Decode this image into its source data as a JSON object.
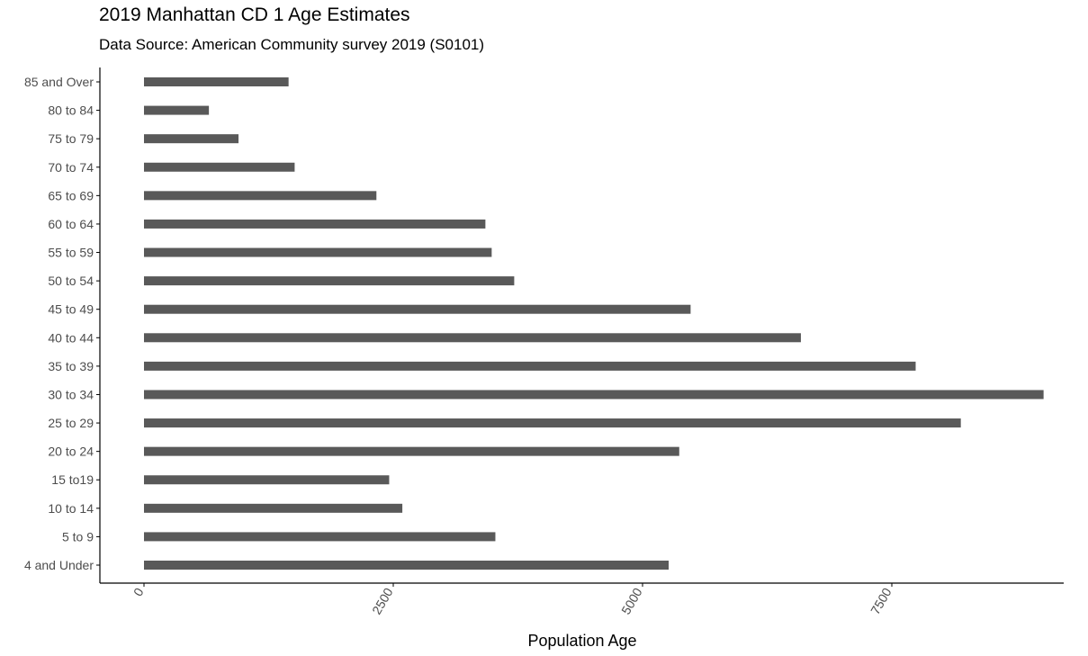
{
  "chart_data": {
    "type": "bar",
    "orientation": "horizontal",
    "title": "2019 Manhattan CD 1 Age Estimates",
    "subtitle": "Data Source: American Community survey 2019 (S0101)",
    "xlabel": "Population Age",
    "ylabel": "",
    "categories": [
      "4 and Under",
      "5 to 9",
      "10 to 14",
      "15 to19",
      "20 to 24",
      "25 to 29",
      "30 to 34",
      "35 to 39",
      "40 to 44",
      "45 to 49",
      "50 to 54",
      "55 to 59",
      "60 to 64",
      "65 to 69",
      "70 to 74",
      "75 to 79",
      "80 to 84",
      "85 and Over"
    ],
    "values": [
      5262,
      3524,
      2591,
      2459,
      5368,
      8192,
      9022,
      7739,
      6588,
      5482,
      3713,
      3487,
      3424,
      2331,
      1511,
      948,
      651,
      1450
    ],
    "xticks": [
      0,
      2500,
      5000,
      7500
    ],
    "xtick_labels": [
      "0",
      "2500",
      "5000",
      "7500"
    ],
    "xlim": [
      -450,
      9200
    ],
    "bar_color": "#595959",
    "grid": false,
    "legend": "none"
  }
}
